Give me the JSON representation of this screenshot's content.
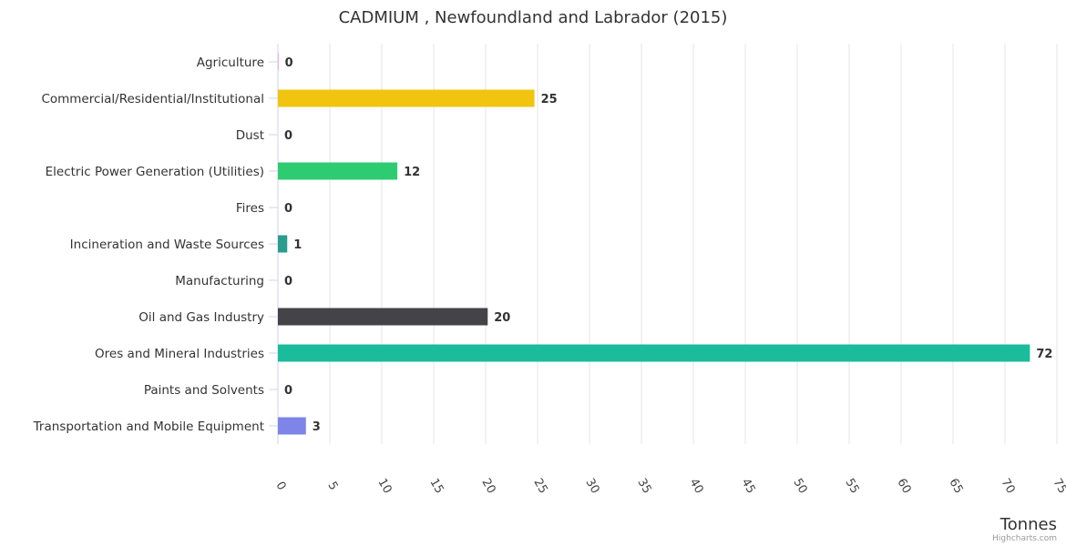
{
  "chart_data": {
    "type": "bar",
    "orientation": "horizontal",
    "title": "CADMIUM , Newfoundland and Labrador (2015)",
    "categories": [
      "Agriculture",
      "Commercial/Residential/Institutional",
      "Dust",
      "Electric Power Generation (Utilities)",
      "Fires",
      "Incineration and Waste Sources",
      "Manufacturing",
      "Oil and Gas Industry",
      "Ores and Mineral Industries",
      "Paints and Solvents",
      "Transportation and Mobile Equipment"
    ],
    "values": [
      0.05,
      24.7,
      0,
      11.5,
      0,
      0.9,
      0,
      20.2,
      72.4,
      0,
      2.7
    ],
    "data_labels": [
      "0",
      "25",
      "0",
      "12",
      "0",
      "1",
      "0",
      "20",
      "72",
      "0",
      "3"
    ],
    "colors": [
      "#e377c2",
      "#f1c40f",
      "#95a5a6",
      "#2ecc71",
      "#e74c3c",
      "#2a9d8f",
      "#9b59b6",
      "#434348",
      "#1abc9c",
      "#e67e22",
      "#7f84e8"
    ],
    "xlabel": "Tonnes",
    "ylabel": "",
    "xlim": [
      0,
      75
    ],
    "ticks": [
      0,
      5,
      10,
      15,
      20,
      25,
      30,
      35,
      40,
      45,
      50,
      55,
      60,
      65,
      70,
      75
    ],
    "grid": true,
    "legend": "none"
  },
  "credits": "Highcharts.com"
}
